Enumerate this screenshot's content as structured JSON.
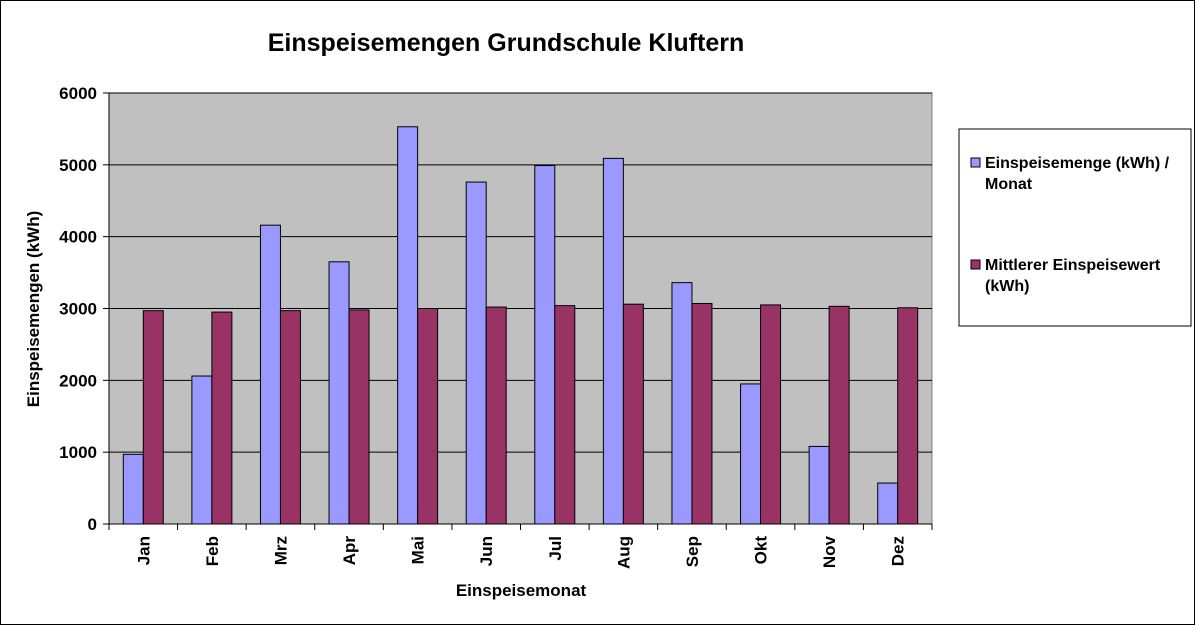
{
  "colors": {
    "plot_background": "#c0c0c0",
    "series_1": "#9999ff",
    "series_2": "#993366",
    "gridline": "#000000"
  },
  "chart_data": {
    "type": "bar",
    "title": "Einspeisemengen Grundschule Kluftern",
    "xlabel": "Einspeisemonat",
    "ylabel": "Einspeisemengen (kWh)",
    "ylim": [
      0,
      6000
    ],
    "yticks": [
      0,
      1000,
      2000,
      3000,
      4000,
      5000,
      6000
    ],
    "grid": true,
    "legend_position": "right",
    "categories": [
      "Jan",
      "Feb",
      "Mrz",
      "Apr",
      "Mai",
      "Jun",
      "Jul",
      "Aug",
      "Sep",
      "Okt",
      "Nov",
      "Dez"
    ],
    "series": [
      {
        "name": "Einspeisemenge (kWh) / Monat",
        "legend_lines": [
          "Einspeisemenge (kWh) /",
          "Monat"
        ],
        "color": "#9999ff",
        "values": [
          970,
          2060,
          4160,
          3650,
          5530,
          4760,
          4990,
          5090,
          3360,
          1950,
          1080,
          570
        ]
      },
      {
        "name": "Mittlerer Einspeisewert (kWh)",
        "legend_lines": [
          "Mittlerer Einspeisewert",
          "(kWh)"
        ],
        "color": "#993366",
        "values": [
          2970,
          2950,
          2970,
          2980,
          3000,
          3020,
          3040,
          3060,
          3070,
          3050,
          3030,
          3010
        ]
      }
    ]
  }
}
